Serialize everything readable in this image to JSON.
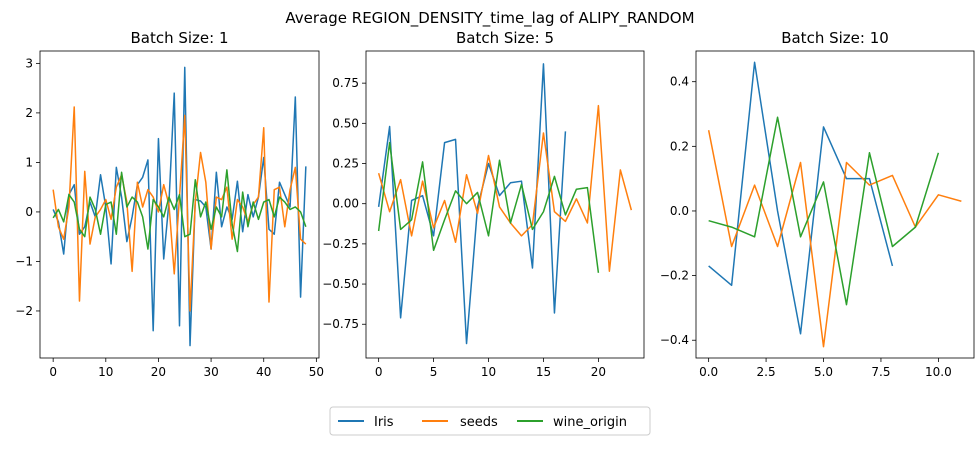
{
  "title": "Average REGION_DENSITY_time_lag of ALIPY_RANDOM",
  "colors": {
    "Iris": "#1f77b4",
    "seeds": "#ff7f0e",
    "wine_origin": "#2ca02c"
  },
  "legend": {
    "placement": "bottom-center",
    "labels": [
      "Iris",
      "seeds",
      "wine_origin"
    ]
  },
  "chart_data": [
    {
      "type": "line",
      "title": "Batch Size: 1",
      "xlim": [
        -2.5,
        50.5
      ],
      "ylim": [
        -2.95,
        3.25
      ],
      "xticks": [
        0,
        10,
        20,
        30,
        40,
        50
      ],
      "xtick_labels": [
        "0",
        "10",
        "20",
        "30",
        "40",
        "50"
      ],
      "yticks": [
        -2,
        -1,
        0,
        1,
        2,
        3
      ],
      "ytick_labels": [
        "−2",
        "−1",
        "0",
        "1",
        "2",
        "3"
      ],
      "series": [
        {
          "name": "Iris",
          "color": "#1f77b4",
          "x": [
            0,
            1,
            2,
            3,
            4,
            5,
            6,
            7,
            8,
            9,
            10,
            11,
            12,
            13,
            14,
            15,
            16,
            17,
            18,
            19,
            20,
            21,
            22,
            23,
            24,
            25,
            26,
            27,
            28,
            29,
            30,
            31,
            32,
            33,
            34,
            35,
            36,
            37,
            38,
            39,
            40,
            41,
            42,
            43,
            44,
            45,
            46,
            47,
            48
          ],
          "y": [
            0.05,
            -0.2,
            -0.85,
            0.35,
            0.55,
            -0.45,
            -0.3,
            0.2,
            -0.1,
            0.75,
            0.1,
            -1.05,
            0.9,
            0.3,
            -0.6,
            -0.1,
            0.55,
            0.7,
            1.05,
            -2.4,
            1.48,
            -0.95,
            0.2,
            2.4,
            -2.3,
            2.92,
            -2.7,
            0.25,
            0.22,
            0.1,
            -0.75,
            0.8,
            -0.3,
            0.1,
            -0.15,
            0.62,
            -0.4,
            0.35,
            -0.1,
            0.3,
            1.1,
            -0.35,
            -0.45,
            0.6,
            0.35,
            0.1,
            2.32,
            -1.72,
            0.92
          ]
        },
        {
          "name": "seeds",
          "color": "#ff7f0e",
          "x": [
            0,
            1,
            2,
            3,
            4,
            5,
            6,
            7,
            8,
            9,
            10,
            11,
            12,
            13,
            14,
            15,
            16,
            17,
            18,
            19,
            20,
            21,
            22,
            23,
            24,
            25,
            26,
            27,
            28,
            29,
            30,
            31,
            32,
            33,
            34,
            35,
            36,
            37,
            38,
            39,
            40,
            41,
            42,
            43,
            44,
            45,
            46,
            47,
            48
          ],
          "y": [
            0.45,
            -0.3,
            -0.55,
            0.1,
            2.12,
            -1.8,
            0.82,
            -0.65,
            -0.1,
            0.05,
            0.25,
            -0.15,
            0.5,
            0.75,
            0.2,
            -1.2,
            0.6,
            0.1,
            0.45,
            0.3,
            0.0,
            0.55,
            0.15,
            -1.25,
            0.3,
            1.95,
            -2.0,
            0.2,
            1.2,
            0.6,
            -0.75,
            0.3,
            0.25,
            0.5,
            -0.55,
            0.25,
            0.1,
            -0.2,
            0.15,
            0.3,
            1.7,
            -1.82,
            0.45,
            0.5,
            -0.3,
            0.45,
            0.9,
            -0.55,
            -0.65
          ]
        },
        {
          "name": "wine_origin",
          "color": "#2ca02c",
          "x": [
            0,
            1,
            2,
            3,
            4,
            5,
            6,
            7,
            8,
            9,
            10,
            11,
            12,
            13,
            14,
            15,
            16,
            17,
            18,
            19,
            20,
            21,
            22,
            23,
            24,
            25,
            26,
            27,
            28,
            29,
            30,
            31,
            32,
            33,
            34,
            35,
            36,
            37,
            38,
            39,
            40,
            41,
            42,
            43,
            44,
            45,
            46,
            47,
            48
          ],
          "y": [
            -0.12,
            0.05,
            -0.2,
            0.35,
            0.2,
            -0.35,
            -0.5,
            0.3,
            0.05,
            -0.45,
            0.15,
            0.2,
            -0.45,
            0.8,
            0.1,
            0.3,
            0.2,
            -0.1,
            -0.75,
            0.25,
            0.1,
            -0.1,
            0.3,
            0.05,
            0.35,
            -0.5,
            -0.45,
            0.65,
            -0.1,
            0.2,
            -0.35,
            0.1,
            -0.1,
            0.85,
            -0.25,
            -0.8,
            0.4,
            -0.3,
            0.2,
            -0.15,
            0.2,
            0.25,
            -0.1,
            0.3,
            0.2,
            0.05,
            0.1,
            0.0,
            -0.3
          ]
        }
      ]
    },
    {
      "type": "line",
      "title": "Batch Size: 5",
      "xlim": [
        -1.15,
        24.15
      ],
      "ylim": [
        -0.96,
        0.95
      ],
      "xticks": [
        0,
        5,
        10,
        15,
        20
      ],
      "xtick_labels": [
        "0",
        "5",
        "10",
        "15",
        "20"
      ],
      "yticks": [
        -0.75,
        -0.5,
        -0.25,
        0.0,
        0.25,
        0.5,
        0.75
      ],
      "ytick_labels": [
        "−0.75",
        "−0.50",
        "−0.25",
        "0.00",
        "0.25",
        "0.50",
        "0.75"
      ],
      "series": [
        {
          "name": "Iris",
          "color": "#1f77b4",
          "x": [
            0,
            1,
            2,
            3,
            4,
            5,
            6,
            7,
            8,
            9,
            10,
            11,
            12,
            13,
            14,
            15,
            16,
            17
          ],
          "y": [
            -0.02,
            0.48,
            -0.71,
            0.02,
            0.05,
            -0.2,
            0.38,
            0.4,
            -0.87,
            -0.02,
            0.25,
            0.05,
            0.13,
            0.14,
            -0.4,
            0.87,
            -0.68,
            0.45
          ]
        },
        {
          "name": "seeds",
          "color": "#ff7f0e",
          "x": [
            0,
            1,
            2,
            3,
            4,
            5,
            6,
            7,
            8,
            9,
            10,
            11,
            12,
            13,
            14,
            15,
            16,
            17,
            18,
            19,
            20,
            21,
            22,
            23
          ],
          "y": [
            0.19,
            -0.05,
            0.15,
            -0.2,
            0.14,
            -0.15,
            0.02,
            -0.24,
            0.18,
            -0.06,
            0.3,
            -0.02,
            -0.12,
            -0.2,
            -0.13,
            0.44,
            -0.05,
            -0.11,
            0.03,
            -0.12,
            0.61,
            -0.42,
            0.21,
            -0.04
          ]
        },
        {
          "name": "wine_origin",
          "color": "#2ca02c",
          "x": [
            0,
            1,
            2,
            3,
            4,
            5,
            6,
            7,
            8,
            9,
            10,
            11,
            12,
            13,
            14,
            15,
            16,
            17,
            18,
            19,
            20
          ],
          "y": [
            -0.17,
            0.38,
            -0.16,
            -0.1,
            0.26,
            -0.29,
            -0.1,
            0.08,
            0.0,
            0.07,
            -0.2,
            0.27,
            -0.12,
            0.12,
            -0.16,
            -0.05,
            0.17,
            -0.07,
            0.09,
            0.1,
            -0.43
          ]
        }
      ]
    },
    {
      "type": "line",
      "title": "Batch Size: 10",
      "xlim": [
        -0.55,
        11.55
      ],
      "ylim": [
        -0.455,
        0.495
      ],
      "xticks": [
        0,
        2.5,
        5,
        7.5,
        10
      ],
      "xtick_labels": [
        "0.0",
        "2.5",
        "5.0",
        "7.5",
        "10.0"
      ],
      "yticks": [
        -0.4,
        -0.2,
        0.0,
        0.2,
        0.4
      ],
      "ytick_labels": [
        "−0.4",
        "−0.2",
        "0.0",
        "0.2",
        "0.4"
      ],
      "series": [
        {
          "name": "Iris",
          "color": "#1f77b4",
          "x": [
            0,
            1,
            2,
            3,
            4,
            5,
            6,
            7,
            8
          ],
          "y": [
            -0.17,
            -0.23,
            0.46,
            0.0,
            -0.38,
            0.26,
            0.1,
            0.1,
            -0.17
          ]
        },
        {
          "name": "seeds",
          "color": "#ff7f0e",
          "x": [
            0,
            1,
            2,
            3,
            4,
            5,
            6,
            7,
            8,
            9,
            10,
            11
          ],
          "y": [
            0.25,
            -0.11,
            0.08,
            -0.11,
            0.15,
            -0.42,
            0.15,
            0.08,
            0.11,
            -0.05,
            0.05,
            0.03
          ]
        },
        {
          "name": "wine_origin",
          "color": "#2ca02c",
          "x": [
            0,
            1,
            2,
            3,
            4,
            5,
            6,
            7,
            8,
            9,
            10
          ],
          "y": [
            -0.03,
            -0.05,
            -0.08,
            0.29,
            -0.08,
            0.09,
            -0.29,
            0.18,
            -0.11,
            -0.05,
            0.18
          ]
        }
      ]
    }
  ]
}
